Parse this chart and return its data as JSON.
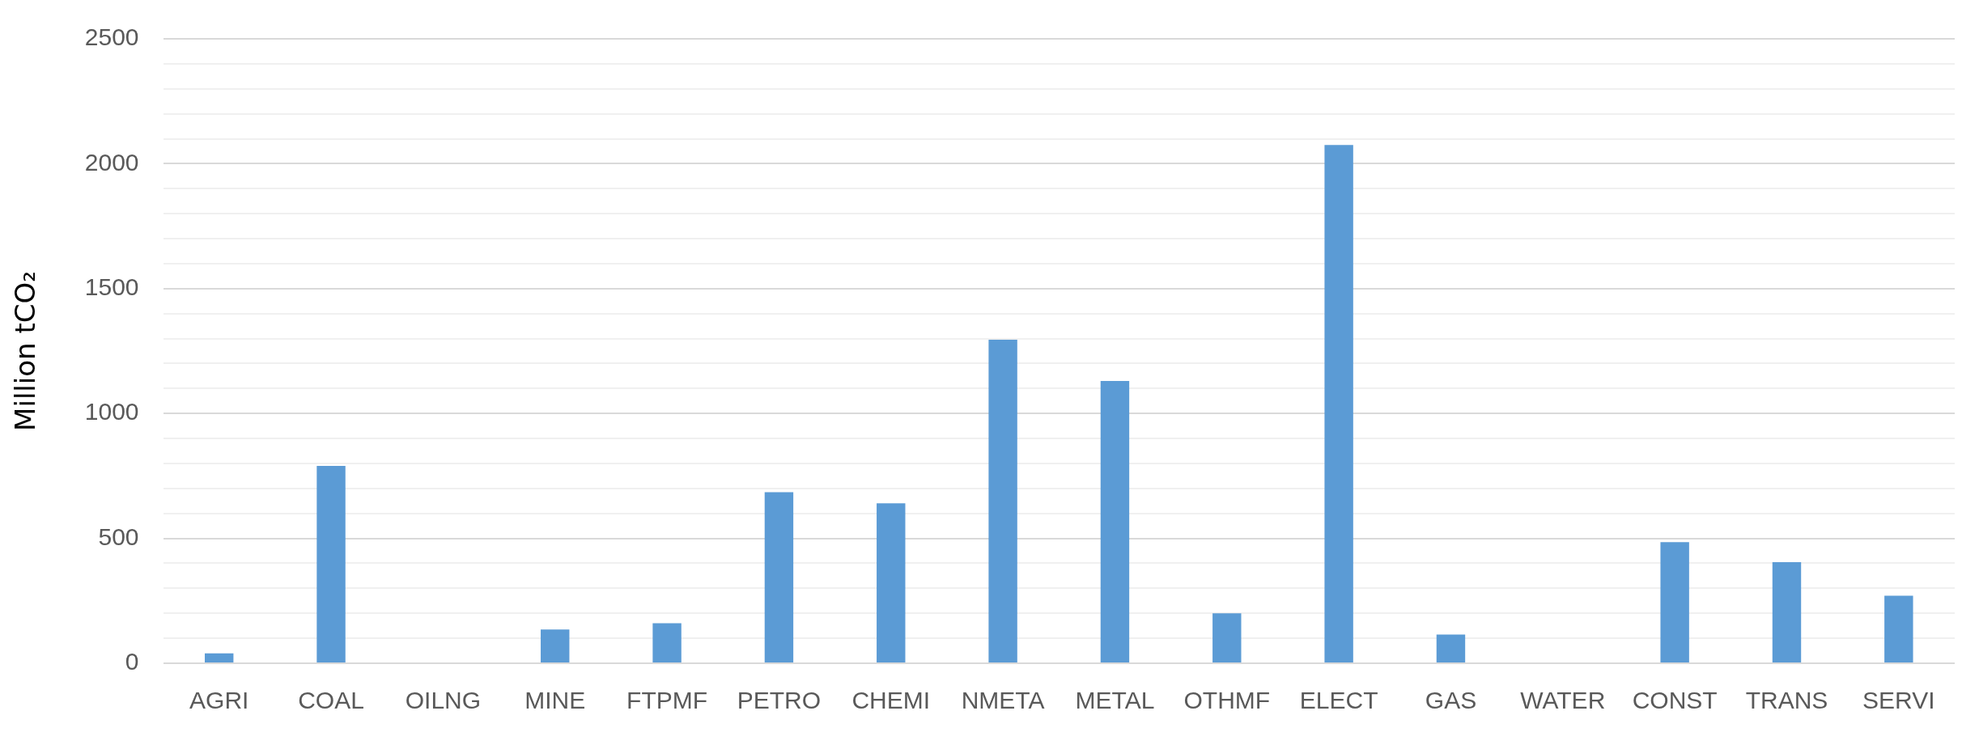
{
  "chart_data": {
    "type": "bar",
    "ylabel": "Million tCO₂",
    "categories": [
      "AGRI",
      "COAL",
      "OILNG",
      "MINE",
      "FTPMF",
      "PETRO",
      "CHEMI",
      "NMETA",
      "METAL",
      "OTHMF",
      "ELECT",
      "GAS",
      "WATER",
      "CONST",
      "TRANS",
      "SERVI"
    ],
    "values": [
      40,
      790,
      0,
      135,
      160,
      685,
      640,
      1295,
      1130,
      200,
      2075,
      115,
      0,
      485,
      405,
      270
    ],
    "color": "#5b9bd5",
    "ylim": [
      0,
      2500
    ],
    "yticks": [
      0,
      {
        "value": 100,
        "label": null
      },
      {
        "value": 200,
        "label": null
      },
      {
        "value": 300,
        "label": null
      },
      {
        "value": 400,
        "label": null
      },
      500,
      {
        "value": 600,
        "label": null
      },
      {
        "value": 700,
        "label": null
      },
      {
        "value": 800,
        "label": null
      },
      {
        "value": 900,
        "label": null
      },
      1000,
      {
        "value": 1100,
        "label": null
      },
      {
        "value": 1200,
        "label": null
      },
      {
        "value": 1300,
        "label": null
      },
      {
        "value": 1400,
        "label": null
      },
      1500,
      {
        "value": 1600,
        "label": null
      },
      {
        "value": 1700,
        "label": null
      },
      {
        "value": 1800,
        "label": null
      },
      {
        "value": 1900,
        "label": null
      },
      2000,
      {
        "value": 2100,
        "label": null
      },
      {
        "value": 2200,
        "label": null
      },
      {
        "value": 2300,
        "label": null
      },
      {
        "value": 2400,
        "label": null
      },
      2500
    ],
    "grid": "y",
    "legend": false
  }
}
